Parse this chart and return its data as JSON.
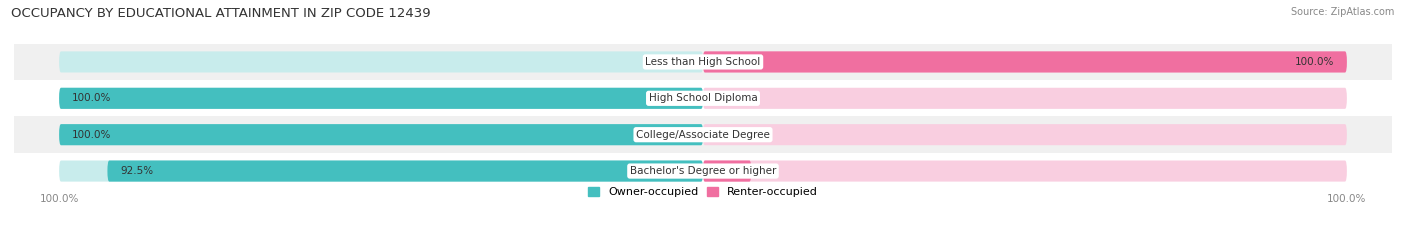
{
  "title": "OCCUPANCY BY EDUCATIONAL ATTAINMENT IN ZIP CODE 12439",
  "source": "Source: ZipAtlas.com",
  "categories": [
    "Less than High School",
    "High School Diploma",
    "College/Associate Degree",
    "Bachelor's Degree or higher"
  ],
  "owner_values": [
    0.0,
    100.0,
    100.0,
    92.5
  ],
  "renter_values": [
    100.0,
    0.0,
    0.0,
    7.5
  ],
  "owner_color": "#44BFBF",
  "renter_color": "#F06FA0",
  "owner_color_light": "#C8ECEC",
  "renter_color_light": "#F9CEE0",
  "bg_color": "#FFFFFF",
  "row_bg_colors": [
    "#F0F0F0",
    "#FFFFFF",
    "#F0F0F0",
    "#FFFFFF"
  ],
  "title_fontsize": 9.5,
  "label_fontsize": 7.5,
  "axis_label_fontsize": 7.5,
  "legend_fontsize": 8,
  "source_fontsize": 7
}
